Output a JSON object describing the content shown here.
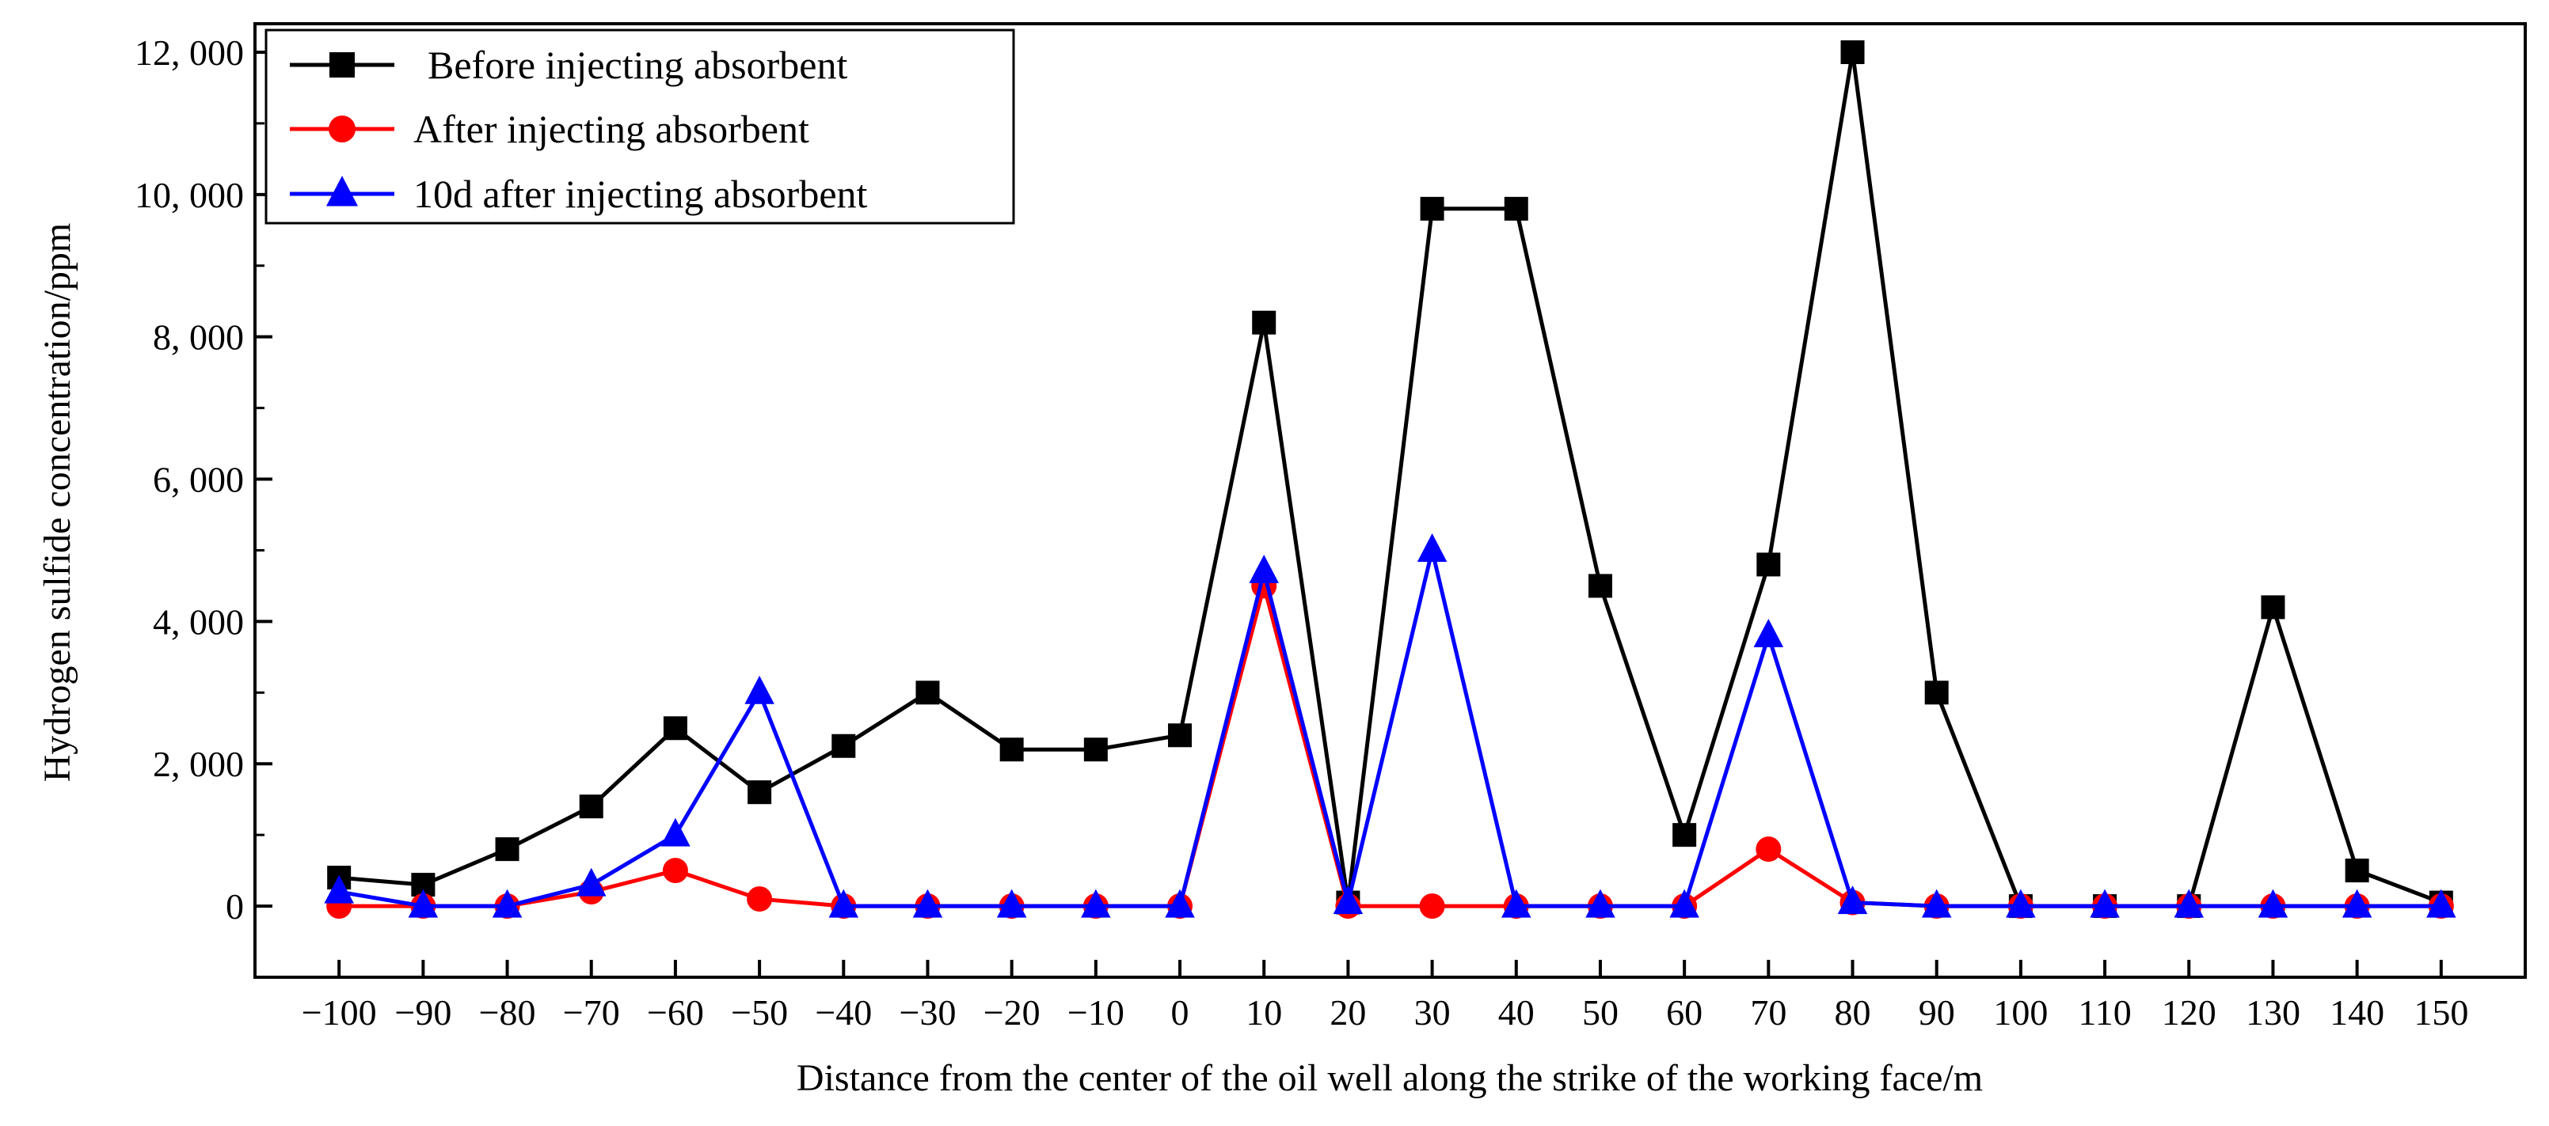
{
  "chart_data": {
    "type": "line",
    "title": "",
    "xlabel": "Distance from the center of the oil well along the strike of the working face/m",
    "ylabel": "Hydrogen sulfide concentration/ppm",
    "x": [
      -100,
      -90,
      -80,
      -70,
      -60,
      -50,
      -40,
      -30,
      -20,
      -10,
      0,
      10,
      20,
      30,
      40,
      50,
      60,
      70,
      80,
      90,
      100,
      110,
      120,
      130,
      140,
      150
    ],
    "x_tick_labels": [
      "−100",
      "−90",
      "−80",
      "−70",
      "−60",
      "−50",
      "−40",
      "−30",
      "−20",
      "−10",
      "0",
      "10",
      "20",
      "30",
      "40",
      "50",
      "60",
      "70",
      "80",
      "90",
      "100",
      "110",
      "120",
      "130",
      "140",
      "150"
    ],
    "xlim": [
      -110,
      160
    ],
    "ylim": [
      -1000,
      12400
    ],
    "y_ticks": [
      0,
      2000,
      4000,
      6000,
      8000,
      10000,
      12000
    ],
    "y_tick_labels": [
      "0",
      "2, 000",
      "4, 000",
      "6, 000",
      "8, 000",
      "10, 000",
      "12, 000"
    ],
    "grid": false,
    "legend_position": "top-left",
    "series": [
      {
        "name": "Before injecting absorbent",
        "color": "#000000",
        "marker": "square",
        "values": [
          400,
          300,
          800,
          1400,
          2500,
          1600,
          2250,
          3000,
          2200,
          2200,
          2400,
          8200,
          50,
          9800,
          9800,
          4500,
          1000,
          4800,
          12000,
          3000,
          0,
          0,
          0,
          4200,
          500,
          50
        ]
      },
      {
        "name": "After injecting absorbent",
        "color": "#ff0000",
        "marker": "circle",
        "values": [
          0,
          0,
          0,
          200,
          500,
          100,
          0,
          0,
          0,
          0,
          0,
          4500,
          0,
          0,
          0,
          0,
          0,
          800,
          50,
          0,
          0,
          0,
          0,
          0,
          0,
          0
        ]
      },
      {
        "name": "10d after injecting absorbent",
        "color": "#0000ff",
        "marker": "triangle",
        "values": [
          200,
          0,
          0,
          300,
          1000,
          3000,
          0,
          0,
          0,
          0,
          0,
          4700,
          50,
          5000,
          0,
          0,
          0,
          3800,
          50,
          0,
          0,
          0,
          0,
          0,
          0,
          0
        ]
      }
    ]
  }
}
